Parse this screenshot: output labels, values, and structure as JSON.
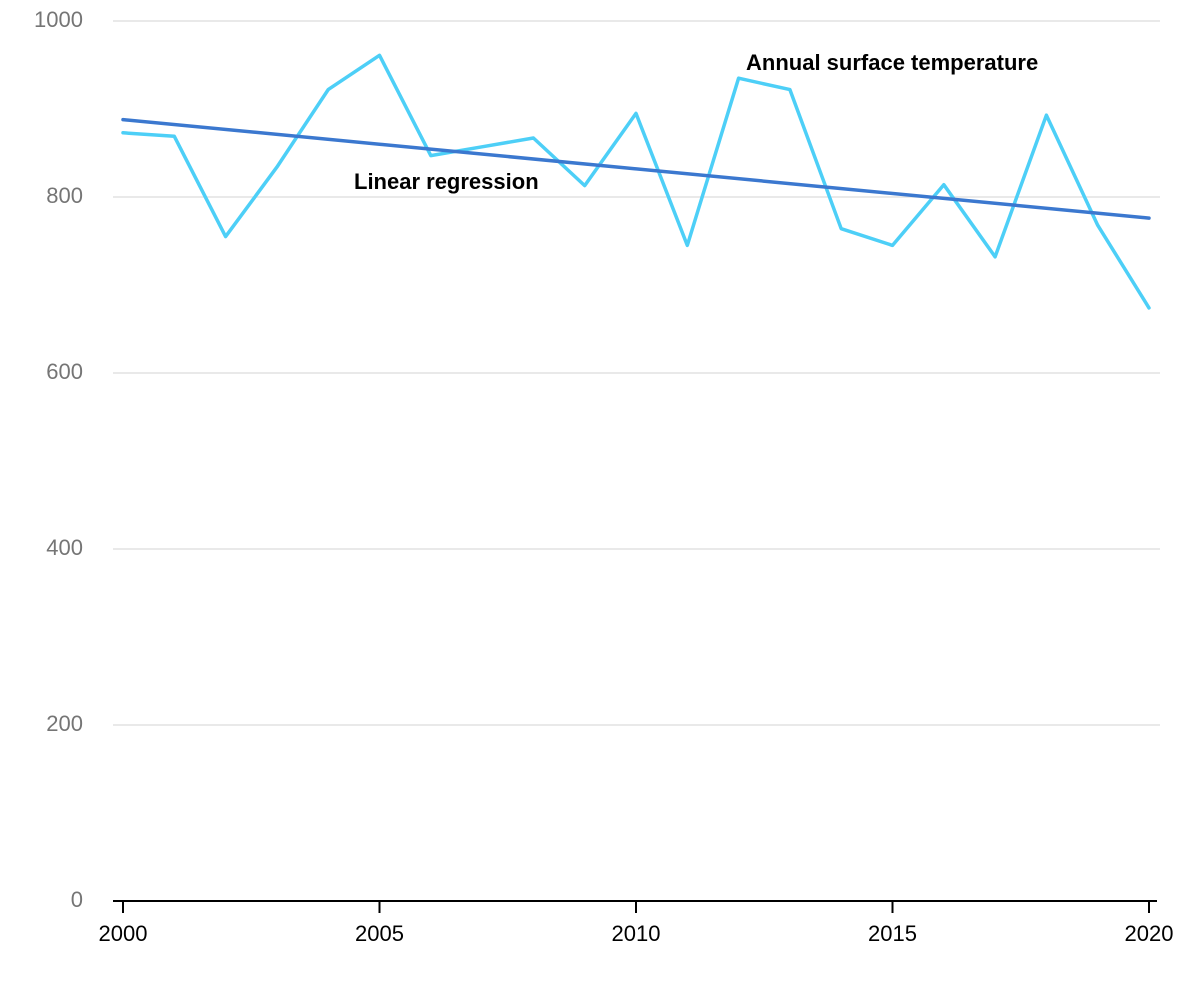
{
  "chart_data": {
    "type": "line",
    "title": "",
    "xlabel": "",
    "ylabel": "",
    "xlim": [
      2000,
      2020
    ],
    "ylim": [
      0,
      1000
    ],
    "grid": true,
    "legend": "inline labels",
    "x_ticks": [
      "2000",
      "2005",
      "2010",
      "2015",
      "2020"
    ],
    "y_ticks": [
      "0",
      "200",
      "400",
      "600",
      "800",
      "1000"
    ],
    "series": [
      {
        "name": "Annual surface temperature",
        "color": "#4dcff7",
        "x": [
          2000,
          2001,
          2002,
          2003,
          2004,
          2005,
          2006,
          2007,
          2008,
          2009,
          2010,
          2011,
          2012,
          2013,
          2014,
          2015,
          2016,
          2017,
          2018,
          2019,
          2020
        ],
        "values": [
          873,
          869,
          755,
          834,
          922,
          961,
          847,
          857,
          867,
          813,
          895,
          745,
          935,
          922,
          764,
          745,
          814,
          732,
          893,
          768,
          674
        ]
      },
      {
        "name": "Linear regression",
        "color": "#3b78cf",
        "x": [
          2000,
          2020
        ],
        "values": [
          888,
          776
        ]
      }
    ]
  }
}
